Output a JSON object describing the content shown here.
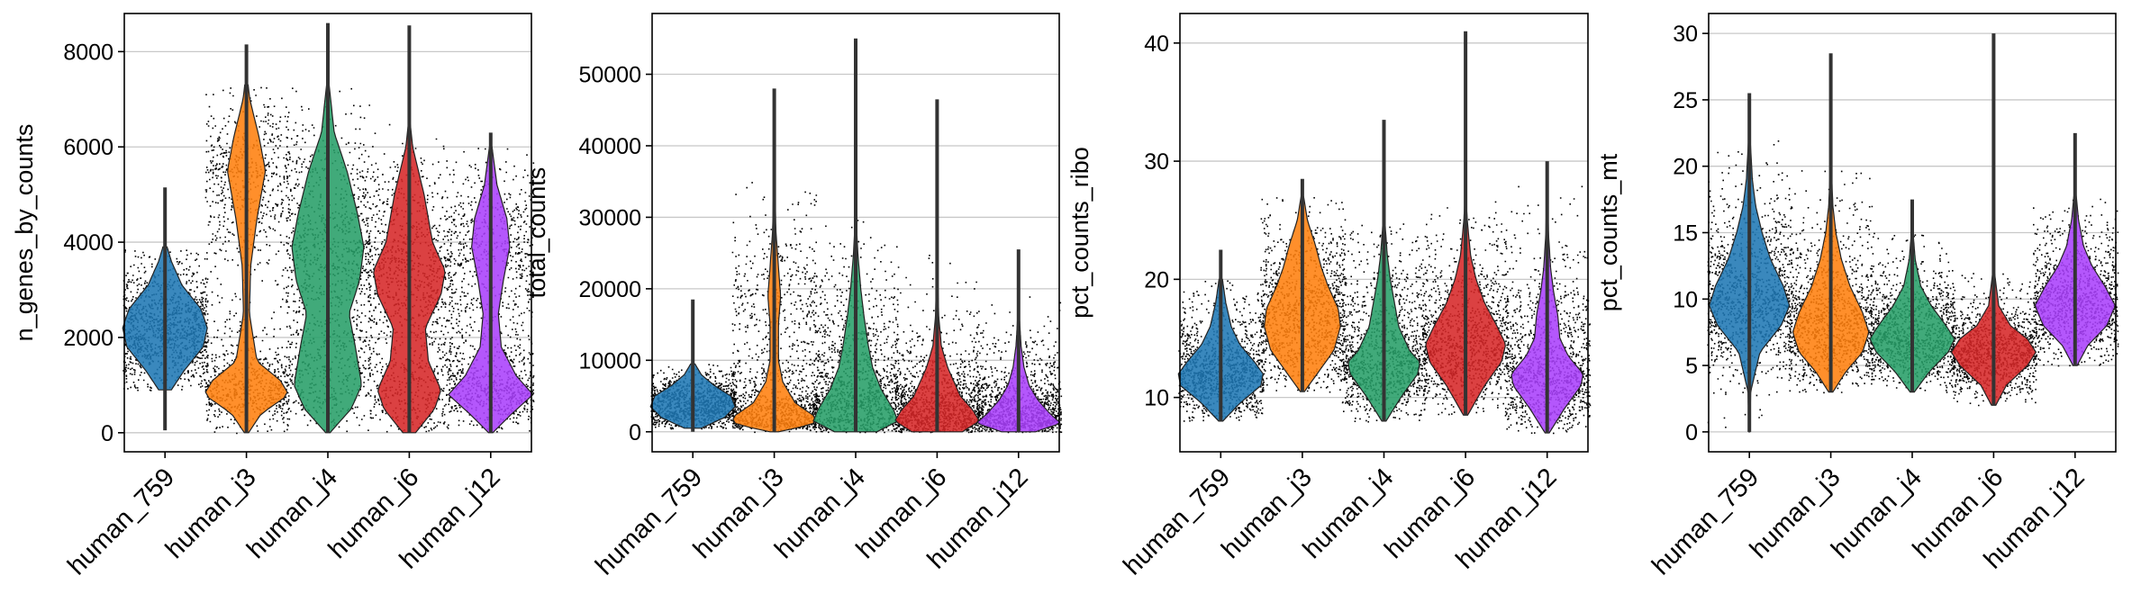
{
  "chart_data": [
    {
      "type": "violin",
      "ylabel": "n_genes_by_counts",
      "xlabel": "",
      "categories": [
        "human_759",
        "human_j3",
        "human_j4",
        "human_j6",
        "human_j12"
      ],
      "ylim": [
        -400,
        8800
      ],
      "yticks": [
        0,
        2000,
        4000,
        6000,
        8000
      ],
      "ytick_labels": [
        "0",
        "2000",
        "4000",
        "6000",
        "8000"
      ],
      "grid": true,
      "colors": [
        "#1f77b4",
        "#ff7f0e",
        "#279e68",
        "#d62728",
        "#aa40fc"
      ],
      "series": [
        {
          "min": 50,
          "max": 5150,
          "bounds": [
            900,
            3900
          ],
          "profile": [
            [
              900,
              0.15
            ],
            [
              1300,
              0.45
            ],
            [
              1800,
              0.9
            ],
            [
              2200,
              1.0
            ],
            [
              2600,
              0.85
            ],
            [
              3100,
              0.4
            ],
            [
              3600,
              0.15
            ],
            [
              3900,
              0.05
            ]
          ]
        },
        {
          "min": 0,
          "max": 8150,
          "bounds": [
            0,
            7300
          ],
          "profile": [
            [
              0,
              0.05
            ],
            [
              400,
              0.35
            ],
            [
              800,
              1.0
            ],
            [
              1100,
              0.8
            ],
            [
              1500,
              0.25
            ],
            [
              2500,
              0.07
            ],
            [
              3500,
              0.1
            ],
            [
              4500,
              0.25
            ],
            [
              5500,
              0.45
            ],
            [
              6200,
              0.3
            ],
            [
              7000,
              0.08
            ],
            [
              7300,
              0.04
            ]
          ]
        },
        {
          "min": 0,
          "max": 8600,
          "bounds": [
            0,
            7300
          ],
          "profile": [
            [
              0,
              0.05
            ],
            [
              500,
              0.55
            ],
            [
              1000,
              0.8
            ],
            [
              1800,
              0.65
            ],
            [
              2500,
              0.5
            ],
            [
              3200,
              0.75
            ],
            [
              3900,
              0.85
            ],
            [
              4600,
              0.7
            ],
            [
              5500,
              0.45
            ],
            [
              6300,
              0.15
            ],
            [
              7300,
              0.03
            ]
          ]
        },
        {
          "min": 0,
          "max": 8550,
          "bounds": [
            0,
            6500
          ],
          "profile": [
            [
              0,
              0.15
            ],
            [
              500,
              0.6
            ],
            [
              900,
              0.75
            ],
            [
              1500,
              0.45
            ],
            [
              2200,
              0.38
            ],
            [
              2900,
              0.75
            ],
            [
              3400,
              0.85
            ],
            [
              4000,
              0.55
            ],
            [
              5000,
              0.35
            ],
            [
              6000,
              0.08
            ],
            [
              6500,
              0.02
            ]
          ]
        },
        {
          "min": 0,
          "max": 6300,
          "bounds": [
            0,
            6000
          ],
          "profile": [
            [
              0,
              0.05
            ],
            [
              400,
              0.5
            ],
            [
              800,
              1.0
            ],
            [
              1200,
              0.6
            ],
            [
              1800,
              0.25
            ],
            [
              2500,
              0.18
            ],
            [
              3200,
              0.3
            ],
            [
              3900,
              0.45
            ],
            [
              4500,
              0.38
            ],
            [
              5200,
              0.15
            ],
            [
              6000,
              0.03
            ]
          ]
        }
      ]
    },
    {
      "type": "violin",
      "ylabel": "total_counts",
      "xlabel": "",
      "categories": [
        "human_759",
        "human_j3",
        "human_j4",
        "human_j6",
        "human_j12"
      ],
      "ylim": [
        -2800,
        58500
      ],
      "yticks": [
        0,
        10000,
        20000,
        30000,
        40000,
        50000
      ],
      "ytick_labels": [
        "0",
        "10000",
        "20000",
        "30000",
        "40000",
        "50000"
      ],
      "grid": true,
      "colors": [
        "#1f77b4",
        "#ff7f0e",
        "#279e68",
        "#d62728",
        "#aa40fc"
      ],
      "series": [
        {
          "min": 0,
          "max": 18500,
          "bounds": [
            500,
            9500
          ],
          "profile": [
            [
              500,
              0.2
            ],
            [
              2000,
              0.75
            ],
            [
              3500,
              1.0
            ],
            [
              5000,
              0.9
            ],
            [
              6500,
              0.5
            ],
            [
              8000,
              0.2
            ],
            [
              9500,
              0.05
            ]
          ]
        },
        {
          "min": 0,
          "max": 48000,
          "bounds": [
            0,
            35000
          ],
          "profile": [
            [
              0,
              0.1
            ],
            [
              1000,
              0.9
            ],
            [
              2000,
              1.0
            ],
            [
              4000,
              0.5
            ],
            [
              7000,
              0.2
            ],
            [
              10000,
              0.1
            ],
            [
              15000,
              0.1
            ],
            [
              19000,
              0.15
            ],
            [
              23000,
              0.1
            ],
            [
              28000,
              0.04
            ],
            [
              35000,
              0.01
            ]
          ]
        },
        {
          "min": 0,
          "max": 55000,
          "bounds": [
            0,
            30000
          ],
          "profile": [
            [
              0,
              0.5
            ],
            [
              1500,
              1.0
            ],
            [
              3000,
              0.9
            ],
            [
              6000,
              0.6
            ],
            [
              9000,
              0.4
            ],
            [
              12000,
              0.3
            ],
            [
              16000,
              0.2
            ],
            [
              20000,
              0.12
            ],
            [
              25000,
              0.05
            ],
            [
              30000,
              0.01
            ]
          ]
        },
        {
          "min": 0,
          "max": 46500,
          "bounds": [
            0,
            25000
          ],
          "profile": [
            [
              0,
              0.6
            ],
            [
              1500,
              1.0
            ],
            [
              3000,
              0.85
            ],
            [
              5000,
              0.55
            ],
            [
              7000,
              0.4
            ],
            [
              9000,
              0.25
            ],
            [
              12000,
              0.1
            ],
            [
              16000,
              0.04
            ],
            [
              20000,
              0.02
            ],
            [
              25000,
              0.005
            ]
          ]
        },
        {
          "min": 0,
          "max": 25500,
          "bounds": [
            0,
            20000
          ],
          "profile": [
            [
              0,
              0.4
            ],
            [
              1200,
              1.0
            ],
            [
              2500,
              0.75
            ],
            [
              4500,
              0.45
            ],
            [
              6500,
              0.25
            ],
            [
              9000,
              0.13
            ],
            [
              12000,
              0.06
            ],
            [
              16000,
              0.02
            ],
            [
              20000,
              0.005
            ]
          ]
        }
      ]
    },
    {
      "type": "violin",
      "ylabel": "pct_counts_ribo",
      "xlabel": "",
      "categories": [
        "human_759",
        "human_j3",
        "human_j4",
        "human_j6",
        "human_j12"
      ],
      "ylim": [
        5.4,
        42.5
      ],
      "yticks": [
        10,
        20,
        30,
        40
      ],
      "ytick_labels": [
        "10",
        "20",
        "30",
        "40"
      ],
      "grid": true,
      "colors": [
        "#1f77b4",
        "#ff7f0e",
        "#279e68",
        "#d62728",
        "#aa40fc"
      ],
      "series": [
        {
          "min": 8,
          "max": 22.5,
          "bounds": [
            8,
            20
          ],
          "profile": [
            [
              8,
              0.05
            ],
            [
              9.5,
              0.45
            ],
            [
              11,
              0.95
            ],
            [
              12,
              1.0
            ],
            [
              13,
              0.8
            ],
            [
              14.5,
              0.45
            ],
            [
              16,
              0.25
            ],
            [
              18,
              0.12
            ],
            [
              20,
              0.04
            ]
          ]
        },
        {
          "min": 10.5,
          "max": 28.5,
          "bounds": [
            10.5,
            27
          ],
          "profile": [
            [
              10.5,
              0.05
            ],
            [
              12,
              0.35
            ],
            [
              14,
              0.75
            ],
            [
              16,
              0.9
            ],
            [
              17.5,
              0.85
            ],
            [
              19.5,
              0.6
            ],
            [
              21,
              0.45
            ],
            [
              23,
              0.3
            ],
            [
              25,
              0.12
            ],
            [
              27,
              0.03
            ]
          ]
        },
        {
          "min": 8,
          "max": 33.5,
          "bounds": [
            8,
            25
          ],
          "profile": [
            [
              8,
              0.05
            ],
            [
              10,
              0.4
            ],
            [
              12,
              0.8
            ],
            [
              13,
              0.85
            ],
            [
              14,
              0.6
            ],
            [
              16,
              0.35
            ],
            [
              18,
              0.25
            ],
            [
              20,
              0.15
            ],
            [
              22,
              0.08
            ],
            [
              25,
              0.02
            ]
          ]
        },
        {
          "min": 8.5,
          "max": 41,
          "bounds": [
            8.5,
            27
          ],
          "profile": [
            [
              8.5,
              0.05
            ],
            [
              11,
              0.45
            ],
            [
              13,
              0.85
            ],
            [
              14.5,
              0.95
            ],
            [
              16,
              0.75
            ],
            [
              18,
              0.45
            ],
            [
              20,
              0.25
            ],
            [
              22,
              0.12
            ],
            [
              25,
              0.04
            ],
            [
              27,
              0.01
            ]
          ]
        },
        {
          "min": 7,
          "max": 30,
          "bounds": [
            7,
            28
          ],
          "profile": [
            [
              7,
              0.05
            ],
            [
              9,
              0.4
            ],
            [
              11,
              0.8
            ],
            [
              12,
              0.85
            ],
            [
              13.5,
              0.5
            ],
            [
              15,
              0.3
            ],
            [
              17,
              0.25
            ],
            [
              19,
              0.15
            ],
            [
              21,
              0.08
            ],
            [
              24,
              0.03
            ],
            [
              28,
              0.01
            ]
          ]
        }
      ]
    },
    {
      "type": "violin",
      "ylabel": "pct_counts_mt",
      "xlabel": "",
      "categories": [
        "human_759",
        "human_j3",
        "human_j4",
        "human_j6",
        "human_j12"
      ],
      "ylim": [
        -1.5,
        31.5
      ],
      "yticks": [
        0,
        5,
        10,
        15,
        20,
        25,
        30
      ],
      "ytick_labels": [
        "0",
        "5",
        "10",
        "15",
        "20",
        "25",
        "30"
      ],
      "grid": true,
      "colors": [
        "#1f77b4",
        "#ff7f0e",
        "#279e68",
        "#d62728",
        "#aa40fc"
      ],
      "series": [
        {
          "min": 0,
          "max": 25.5,
          "bounds": [
            0,
            22
          ],
          "profile": [
            [
              0,
              0.01
            ],
            [
              3,
              0.03
            ],
            [
              6,
              0.25
            ],
            [
              8,
              0.75
            ],
            [
              9.5,
              0.95
            ],
            [
              11,
              0.8
            ],
            [
              13,
              0.5
            ],
            [
              15,
              0.3
            ],
            [
              17,
              0.15
            ],
            [
              19,
              0.07
            ],
            [
              22,
              0.02
            ]
          ]
        },
        {
          "min": 3,
          "max": 28.5,
          "bounds": [
            3,
            20
          ],
          "profile": [
            [
              3,
              0.05
            ],
            [
              4.5,
              0.35
            ],
            [
              6,
              0.75
            ],
            [
              7.5,
              0.9
            ],
            [
              9,
              0.75
            ],
            [
              11,
              0.45
            ],
            [
              13,
              0.25
            ],
            [
              15,
              0.12
            ],
            [
              17,
              0.05
            ],
            [
              20,
              0.01
            ]
          ]
        },
        {
          "min": 3,
          "max": 17.5,
          "bounds": [
            3,
            15
          ],
          "profile": [
            [
              3,
              0.05
            ],
            [
              4.5,
              0.4
            ],
            [
              6,
              0.85
            ],
            [
              7,
              1.0
            ],
            [
              8,
              0.8
            ],
            [
              9.5,
              0.45
            ],
            [
              11,
              0.2
            ],
            [
              13,
              0.07
            ],
            [
              15,
              0.02
            ]
          ]
        },
        {
          "min": 2,
          "max": 30,
          "bounds": [
            2,
            12
          ],
          "profile": [
            [
              2,
              0.05
            ],
            [
              3.5,
              0.3
            ],
            [
              5,
              0.8
            ],
            [
              6,
              1.0
            ],
            [
              7,
              0.8
            ],
            [
              8,
              0.4
            ],
            [
              9.5,
              0.12
            ],
            [
              12,
              0.02
            ]
          ]
        },
        {
          "min": 5,
          "max": 22.5,
          "bounds": [
            5,
            18
          ],
          "profile": [
            [
              5,
              0.05
            ],
            [
              6.5,
              0.3
            ],
            [
              8,
              0.75
            ],
            [
              9.5,
              0.95
            ],
            [
              11,
              0.7
            ],
            [
              12.5,
              0.4
            ],
            [
              14,
              0.2
            ],
            [
              16,
              0.08
            ],
            [
              18,
              0.02
            ]
          ]
        }
      ]
    }
  ]
}
